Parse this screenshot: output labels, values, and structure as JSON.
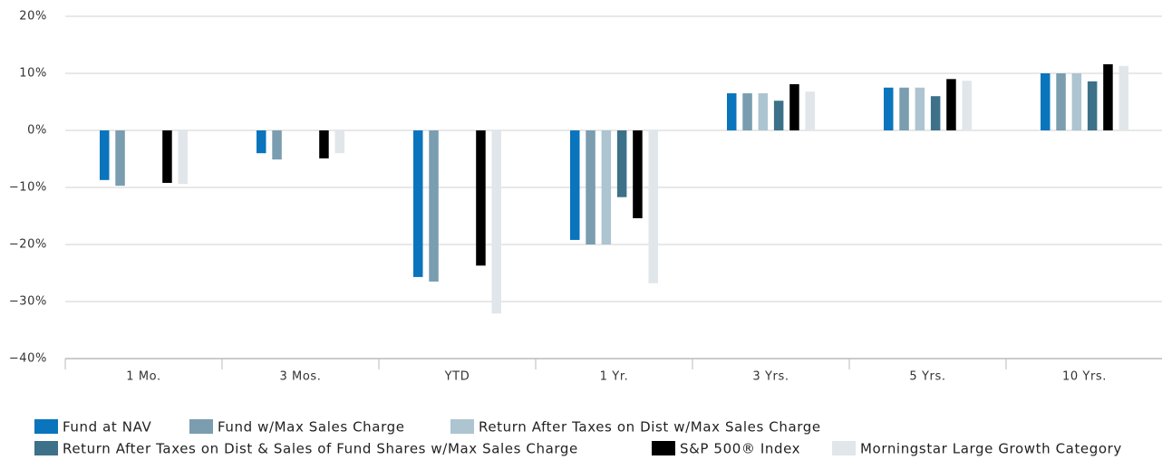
{
  "chart_data": {
    "type": "bar",
    "categories": [
      "1 Mo.",
      "3 Mos.",
      "YTD",
      "1 Yr.",
      "3 Yrs.",
      "5 Yrs.",
      "10 Yrs."
    ],
    "series": [
      {
        "name": "Fund at NAV",
        "color": "#0a74bd",
        "values": [
          -8.7,
          -4.0,
          -25.7,
          -19.2,
          6.5,
          7.5,
          10.0
        ]
      },
      {
        "name": "Fund w/Max Sales Charge",
        "color": "#7a9db0",
        "values": [
          -9.7,
          -5.1,
          -26.5,
          -20.0,
          6.5,
          7.5,
          10.0
        ]
      },
      {
        "name": "Return After Taxes on Dist w/Max Sales Charge",
        "color": "#adc4d1",
        "values": [
          null,
          null,
          null,
          -20.0,
          6.5,
          7.5,
          10.0
        ]
      },
      {
        "name": "Return After Taxes on Dist & Sales of Fund Shares w/Max Sales Charge",
        "color": "#3d7189",
        "values": [
          null,
          null,
          null,
          -11.7,
          5.2,
          6.0,
          8.6
        ]
      },
      {
        "name": "S&P 500® Index",
        "color": "#000000",
        "values": [
          -9.2,
          -4.9,
          -23.7,
          -15.4,
          8.1,
          9.0,
          11.6
        ]
      },
      {
        "name": "Morningstar Large Growth Category",
        "color": "#e1e6ea",
        "values": [
          -9.4,
          -4.0,
          -32.1,
          -26.8,
          6.8,
          8.7,
          11.3
        ]
      }
    ],
    "ylim": [
      -40,
      20
    ],
    "yticks": [
      {
        "value": -40,
        "label": "−40%"
      },
      {
        "value": -30,
        "label": "−30%"
      },
      {
        "value": -20,
        "label": "−20%"
      },
      {
        "value": -10,
        "label": "−10%"
      },
      {
        "value": 0,
        "label": "0%"
      },
      {
        "value": 10,
        "label": "10%"
      },
      {
        "value": 20,
        "label": "20%"
      }
    ],
    "grid": true,
    "legend": "bottom"
  }
}
